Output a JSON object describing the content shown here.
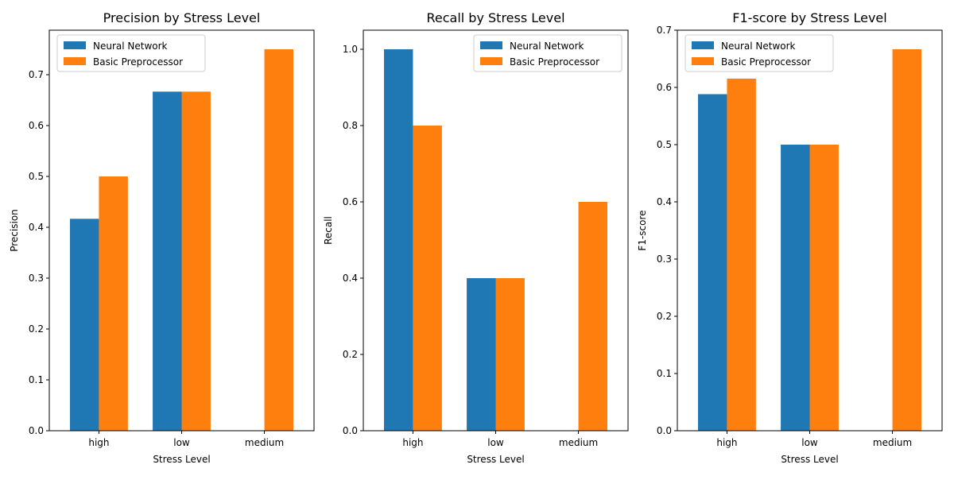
{
  "chart_data": [
    {
      "type": "bar",
      "title": "Precision by Stress Level",
      "xlabel": "Stress Level",
      "ylabel": "Precision",
      "categories": [
        "high",
        "low",
        "medium"
      ],
      "ylim": [
        0,
        0.7875
      ],
      "yticks": [
        "0.0",
        "0.1",
        "0.2",
        "0.3",
        "0.4",
        "0.5",
        "0.6",
        "0.7"
      ],
      "legend_position": "upper left",
      "series": [
        {
          "name": "Neural Network",
          "color": "#1f77b4",
          "values": [
            0.4167,
            0.6667,
            0
          ]
        },
        {
          "name": "Basic Preprocessor",
          "color": "#ff7f0e",
          "values": [
            0.5,
            0.6667,
            0.75
          ]
        }
      ]
    },
    {
      "type": "bar",
      "title": "Recall by Stress Level",
      "xlabel": "Stress Level",
      "ylabel": "Recall",
      "categories": [
        "high",
        "low",
        "medium"
      ],
      "ylim": [
        0,
        1.05
      ],
      "yticks": [
        "0.0",
        "0.2",
        "0.4",
        "0.6",
        "0.8",
        "1.0"
      ],
      "legend_position": "upper right",
      "series": [
        {
          "name": "Neural Network",
          "color": "#1f77b4",
          "values": [
            1.0,
            0.4,
            0
          ]
        },
        {
          "name": "Basic Preprocessor",
          "color": "#ff7f0e",
          "values": [
            0.8,
            0.4,
            0.6
          ]
        }
      ]
    },
    {
      "type": "bar",
      "title": "F1-score by Stress Level",
      "xlabel": "Stress Level",
      "ylabel": "F1-score",
      "categories": [
        "high",
        "low",
        "medium"
      ],
      "ylim": [
        0,
        0.7
      ],
      "yticks": [
        "0.0",
        "0.1",
        "0.2",
        "0.3",
        "0.4",
        "0.5",
        "0.6",
        "0.7"
      ],
      "legend_position": "upper left",
      "series": [
        {
          "name": "Neural Network",
          "color": "#1f77b4",
          "values": [
            0.5882,
            0.5,
            0
          ]
        },
        {
          "name": "Basic Preprocessor",
          "color": "#ff7f0e",
          "values": [
            0.6154,
            0.5,
            0.6667
          ]
        }
      ]
    }
  ]
}
